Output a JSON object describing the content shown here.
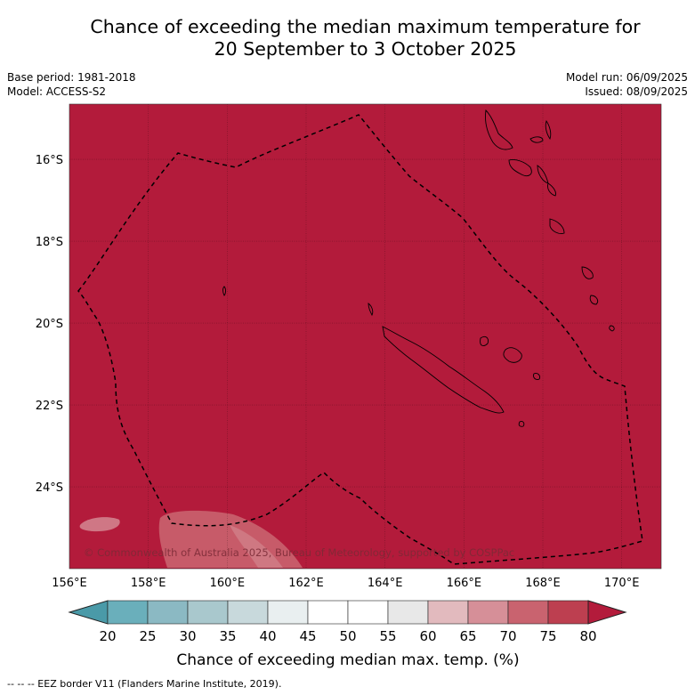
{
  "title_line1": "Chance of exceeding the median maximum temperature for",
  "title_line2": "20 September to 3 October 2025",
  "meta_left": [
    "Base period: 1981-2018",
    "Model: ACCESS-S2"
  ],
  "meta_right": [
    "Model run: 06/09/2025",
    "Issued: 08/09/2025"
  ],
  "copyright": "© Commonwealth of Australia 2025, Bureau of Meteorology, supported by COSPPac",
  "map": {
    "lon_range": [
      156,
      171
    ],
    "lat_range": [
      -26.0,
      -14.65
    ],
    "lat_ticks": [
      {
        "value": -16,
        "label": "16°S"
      },
      {
        "value": -18,
        "label": "18°S"
      },
      {
        "value": -20,
        "label": "20°S"
      },
      {
        "value": -22,
        "label": "22°S"
      },
      {
        "value": -24,
        "label": "24°S"
      }
    ],
    "lon_ticks": [
      {
        "value": 156,
        "label": "156°E"
      },
      {
        "value": 158,
        "label": "158°E"
      },
      {
        "value": 160,
        "label": "160°E"
      },
      {
        "value": 162,
        "label": "162°E"
      },
      {
        "value": 164,
        "label": "164°E"
      },
      {
        "value": 166,
        "label": "166°E"
      },
      {
        "value": 168,
        "label": "168°E"
      },
      {
        "value": 170,
        "label": "170°E"
      }
    ],
    "dominant_category": "80+",
    "fill_color": "#b31b3b"
  },
  "colorbar": {
    "title": "Chance of exceeding median max. temp. (%)",
    "ticks": [
      "20",
      "25",
      "30",
      "35",
      "40",
      "45",
      "50",
      "55",
      "60",
      "65",
      "70",
      "75",
      "80"
    ],
    "under_color": "#4a9aa8",
    "over_color": "#b31b3b",
    "colors": [
      "#6aafbb",
      "#8bb9c3",
      "#a9c8cd",
      "#c8d9dc",
      "#e9eff0",
      "#ffffff",
      "#ffffff",
      "#e8e8e8",
      "#e2babe",
      "#d68f98",
      "#c9636f",
      "#bd3f50"
    ]
  },
  "footer": "--  --  -- EEZ border V11 (Flanders Marine Institute, 2019)."
}
